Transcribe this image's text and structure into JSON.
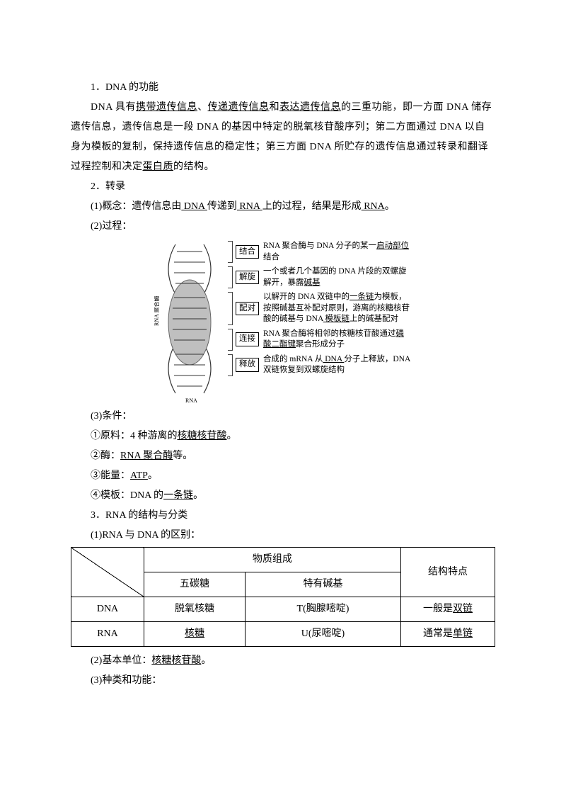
{
  "section1": {
    "heading": "1．DNA 的功能",
    "p1_a": "DNA 具有",
    "p1_u1": "携带遗传信息",
    "p1_b": "、",
    "p1_u2": "传递遗传信息",
    "p1_c": "和",
    "p1_u3": "表达遗传信息",
    "p1_d": "的三重功能，即一方面 DNA 储存遗传信息，遗传信息是一段 DNA 的基因中特定的脱氧核苷酸序列；第二方面通过 DNA 以自身为模板的复制，保持遗传信息的稳定性；第三方面 DNA 所贮存的遗传信息通过转录和翻译过程控制和决定",
    "p1_u4": "蛋白质",
    "p1_e": "的结构。"
  },
  "section2": {
    "heading": "2．转录",
    "p1_a": "(1)概念：遗传信息由",
    "p1_u1": " DNA ",
    "p1_b": "传递到",
    "p1_u2": " RNA ",
    "p1_c": "上的过程，结果是形成",
    "p1_u3": " RNA",
    "p1_d": "。",
    "p2": "(2)过程：",
    "diagram": {
      "steps": [
        {
          "label": "结合",
          "text_a": "RNA 聚合酶与 DNA 分子的某一",
          "u": "启动部位",
          "text_b": "结合"
        },
        {
          "label": "解旋",
          "text_a": "一个或者几个基因的 DNA 片段的双螺旋解开，暴露",
          "u": "碱基",
          "text_b": ""
        },
        {
          "label": "配对",
          "text_a": "以解开的 DNA 双链中的",
          "u1": "一条链",
          "text_b": "为模板，按照碱基互补配对原则，游离的核糖核苷酸的碱基与 DNA",
          "u2": " 模板链",
          "text_c": "上的碱基配对"
        },
        {
          "label": "连接",
          "text_a": "RNA 聚合酶将相邻的核糖核苷酸通过",
          "u": "磷酸二酯键",
          "text_b": "聚合形成分子"
        },
        {
          "label": "释放",
          "text_a": "合成的 mRNA 从",
          "u": " DNA ",
          "text_b": "分子上释放，DNA 双链恢复到双螺旋结构"
        }
      ],
      "side_label": "RNA 聚合酶"
    },
    "p3": "(3)条件：",
    "c1_a": "①原料：4 种游离的",
    "c1_u": "核糖核苷酸",
    "c1_b": "。",
    "c2_a": "②酶：",
    "c2_u": "RNA 聚合酶",
    "c2_b": "等。",
    "c3_a": "③能量：",
    "c3_u": "ATP",
    "c3_b": "。",
    "c4_a": "④模板：DNA 的",
    "c4_u": "一条链",
    "c4_b": "。"
  },
  "section3": {
    "heading": "3．RNA 的结构与分类",
    "p1": "(1)RNA 与 DNA 的区别：",
    "table": {
      "h_material": "物质组成",
      "h_sugar": "五碳糖",
      "h_base": "特有碱基",
      "h_struct": "结构特点",
      "row_dna": {
        "name": "DNA",
        "sugar": "脱氧核糖",
        "base": "T(胸腺嘧啶)",
        "struct_a": "一般是",
        "struct_u": "双链"
      },
      "row_rna": {
        "name": "RNA",
        "sugar": "核糖",
        "base": "U(尿嘧啶)",
        "struct_a": "通常是",
        "struct_u": "单链"
      }
    },
    "p2_a": "(2)基本单位：",
    "p2_u": "核糖核苷酸",
    "p2_b": "。",
    "p3": "(3)种类和功能："
  }
}
